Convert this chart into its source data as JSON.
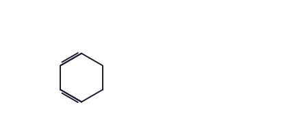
{
  "bg_color": "#ffffff",
  "line_color": "#1a1a2e",
  "lw": 1.4,
  "fig_w": 4.22,
  "fig_h": 1.91
}
